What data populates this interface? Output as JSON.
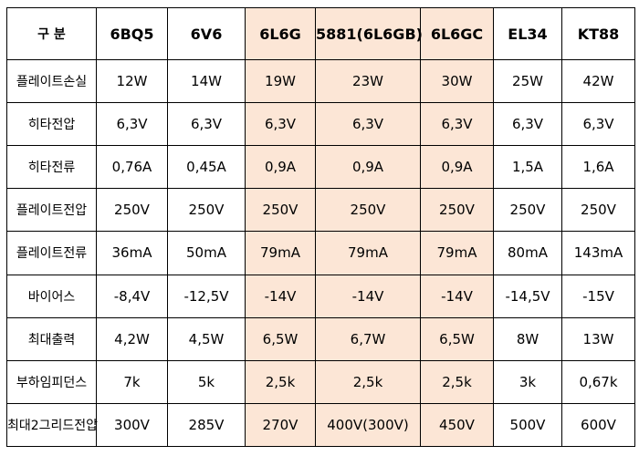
{
  "table": {
    "header": [
      "구 분",
      "6BQ5",
      "6V6",
      "6L6G",
      "5881(6L6GB)",
      "6L6GC",
      "EL34",
      "KT88"
    ],
    "rows": [
      [
        "플레이트손실",
        "12W",
        "14W",
        "19W",
        "23W",
        "30W",
        "25W",
        "42W"
      ],
      [
        "히타전압",
        "6,3V",
        "6,3V",
        "6,3V",
        "6,3V",
        "6,3V",
        "6,3V",
        "6,3V"
      ],
      [
        "히타전류",
        "0,76A",
        "0,45A",
        "0,9A",
        "0,9A",
        "0,9A",
        "1,5A",
        "1,6A"
      ],
      [
        "플레이트전압",
        "250V",
        "250V",
        "250V",
        "250V",
        "250V",
        "250V",
        "250V"
      ],
      [
        "플레이트전류",
        "36mA",
        "50mA",
        "79mA",
        "79mA",
        "79mA",
        "80mA",
        "143mA"
      ],
      [
        "바이어스",
        "-8,4V",
        "-12,5V",
        "-14V",
        "-14V",
        "-14V",
        "-14,5V",
        "-15V"
      ],
      [
        "최대출력",
        "4,2W",
        "4,5W",
        "6,5W",
        "6,7W",
        "6,5W",
        "8W",
        "13W"
      ],
      [
        "부하임피던스",
        "7k",
        "5k",
        "2,5k",
        "2,5k",
        "2,5k",
        "3k",
        "0,67k"
      ],
      [
        "최대2그리드전압",
        "300V",
        "285V",
        "270V",
        "400V(300V)",
        "450V",
        "500V",
        "600V"
      ]
    ]
  }
}
